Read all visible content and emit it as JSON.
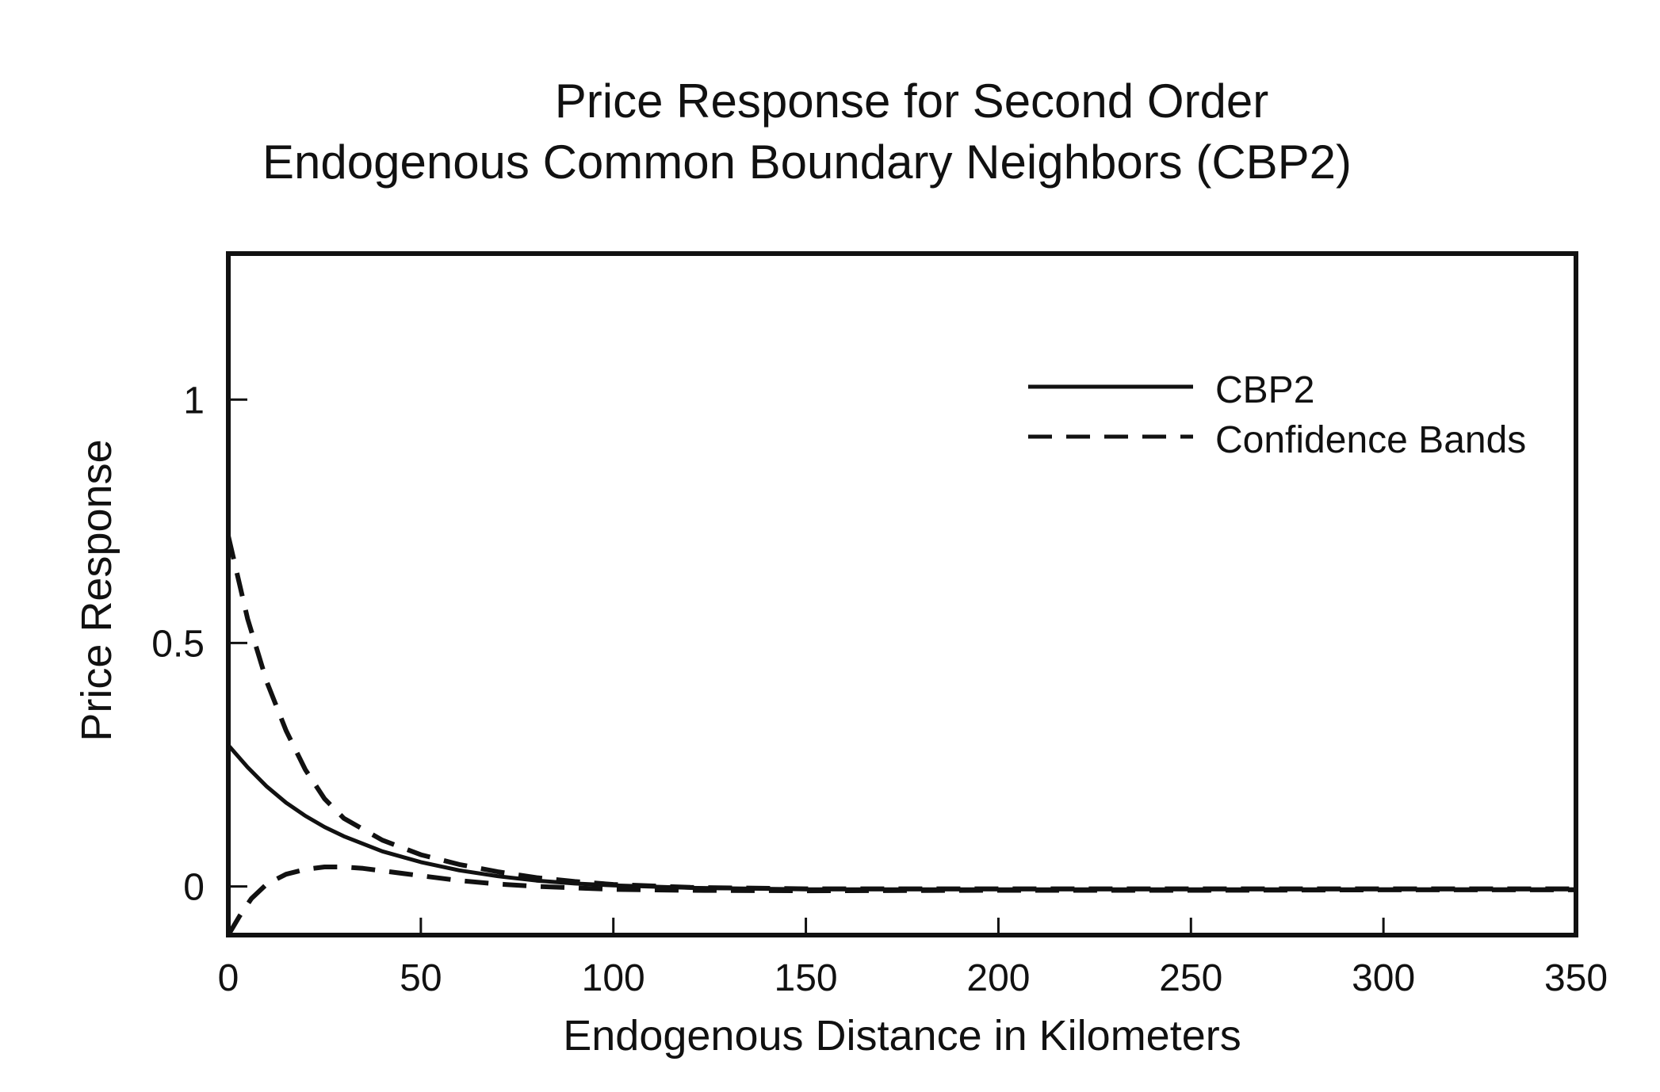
{
  "chart_data": {
    "type": "line",
    "title": "Price Response for Second Order",
    "subtitle": "Endogenous Common Boundary Neighbors (CBP2)",
    "xlabel": "Endogenous Distance in Kilometers",
    "ylabel": "Price Response",
    "xlim": [
      0,
      350
    ],
    "ylim": [
      -0.1,
      1.3
    ],
    "x_ticks": [
      0,
      50,
      100,
      150,
      200,
      250,
      300,
      350
    ],
    "x_tick_labels": [
      "0",
      "50",
      "100",
      "150",
      "200",
      "250",
      "300",
      "350"
    ],
    "y_ticks": [
      0,
      0.5,
      1
    ],
    "y_tick_labels": [
      "0",
      "0.5",
      "1"
    ],
    "grid": false,
    "legend": {
      "position": "top-right",
      "entries": [
        {
          "label": "CBP2",
          "style": "solid"
        },
        {
          "label": "Confidence Bands",
          "style": "dashed"
        }
      ]
    },
    "series": [
      {
        "name": "CBP2",
        "style": "solid",
        "color": "#111111",
        "x": [
          0,
          5,
          10,
          15,
          20,
          25,
          30,
          40,
          50,
          60,
          70,
          80,
          90,
          100,
          120,
          150,
          200,
          250,
          300,
          350
        ],
        "y": [
          0.29,
          0.245,
          0.205,
          0.172,
          0.145,
          0.122,
          0.103,
          0.072,
          0.05,
          0.033,
          0.021,
          0.012,
          0.006,
          0.002,
          -0.003,
          -0.006,
          -0.006,
          -0.006,
          -0.006,
          -0.006
        ]
      },
      {
        "name": "Confidence Bands",
        "style": "dashed",
        "color": "#111111",
        "x": [
          0,
          5,
          10,
          15,
          20,
          25,
          30,
          40,
          50,
          60,
          70,
          80,
          90,
          100,
          120,
          150,
          200,
          250,
          300,
          350
        ],
        "y": [
          0.72,
          0.55,
          0.42,
          0.32,
          0.24,
          0.18,
          0.14,
          0.095,
          0.065,
          0.045,
          0.03,
          0.018,
          0.01,
          0.004,
          -0.002,
          -0.005,
          -0.005,
          -0.005,
          -0.005,
          -0.005
        ]
      },
      {
        "name": "Confidence Bands",
        "style": "dashed",
        "color": "#111111",
        "x": [
          0,
          3,
          6,
          10,
          15,
          20,
          25,
          30,
          35,
          40,
          50,
          60,
          70,
          80,
          90,
          100,
          120,
          150,
          200,
          250,
          300,
          350
        ],
        "y": [
          -0.1,
          -0.06,
          -0.025,
          0.005,
          0.025,
          0.035,
          0.04,
          0.04,
          0.037,
          0.032,
          0.022,
          0.012,
          0.005,
          0.0,
          -0.003,
          -0.006,
          -0.008,
          -0.009,
          -0.008,
          -0.008,
          -0.007,
          -0.007
        ]
      }
    ]
  }
}
